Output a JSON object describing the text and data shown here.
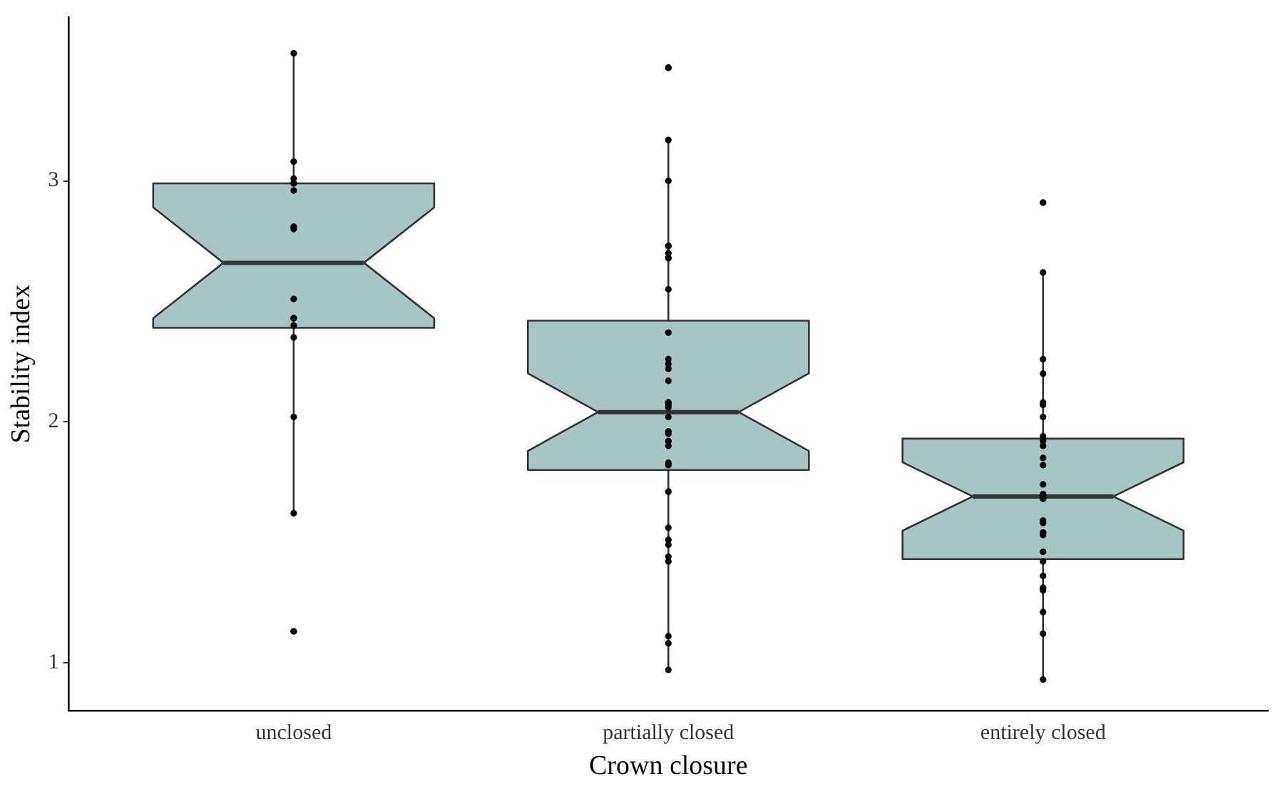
{
  "chart_data": {
    "type": "box",
    "xlabel": "Crown closure",
    "ylabel": "Stability index",
    "categories": [
      "unclosed",
      "partially closed",
      "entirely closed"
    ],
    "boxes": [
      {
        "low": 1.62,
        "q1": 2.39,
        "median": 2.66,
        "q3": 2.99,
        "high": 3.53
      },
      {
        "low": 0.97,
        "q1": 1.8,
        "median": 2.04,
        "q3": 2.42,
        "high": 3.17
      },
      {
        "low": 0.94,
        "q1": 1.43,
        "median": 1.69,
        "q3": 1.93,
        "high": 2.62
      }
    ],
    "color": "#a8c4c4",
    "series": [
      {
        "type": "scatter",
        "color": "#000000",
        "x": [
          "unclosed",
          "unclosed",
          "unclosed",
          "unclosed",
          "unclosed",
          "unclosed",
          "unclosed",
          "unclosed",
          "unclosed",
          "unclosed",
          "unclosed",
          "unclosed",
          "unclosed",
          "unclosed",
          "unclosed",
          "unclosed",
          "unclosed",
          "partially closed",
          "partially closed",
          "partially closed",
          "partially closed",
          "partially closed",
          "partially closed",
          "partially closed",
          "partially closed",
          "partially closed",
          "partially closed",
          "partially closed",
          "partially closed",
          "partially closed",
          "partially closed",
          "partially closed",
          "partially closed",
          "partially closed",
          "partially closed",
          "partially closed",
          "partially closed",
          "partially closed",
          "partially closed",
          "partially closed",
          "partially closed",
          "partially closed",
          "partially closed",
          "partially closed",
          "partially closed",
          "partially closed",
          "partially closed",
          "partially closed",
          "partially closed",
          "partially closed",
          "partially closed",
          "partially closed",
          "partially closed",
          "partially closed",
          "entirely closed",
          "entirely closed",
          "entirely closed",
          "entirely closed",
          "entirely closed",
          "entirely closed",
          "entirely closed",
          "entirely closed",
          "entirely closed",
          "entirely closed",
          "entirely closed",
          "entirely closed",
          "entirely closed",
          "entirely closed",
          "entirely closed",
          "entirely closed",
          "entirely closed",
          "entirely closed",
          "entirely closed",
          "entirely closed",
          "entirely closed",
          "entirely closed",
          "entirely closed",
          "entirely closed",
          "entirely closed",
          "entirely closed",
          "entirely closed",
          "entirely closed",
          "entirely closed",
          "entirely closed",
          "entirely closed"
        ],
        "values": [
          3.53,
          3.08,
          3.01,
          2.99,
          2.99,
          2.96,
          2.81,
          2.8,
          2.51,
          2.43,
          2.43,
          2.4,
          2.35,
          2.02,
          1.62,
          1.13,
          1.13,
          3.47,
          3.47,
          3.17,
          3.0,
          2.73,
          2.73,
          2.7,
          2.68,
          2.68,
          2.55,
          2.37,
          2.26,
          2.24,
          2.22,
          2.17,
          2.08,
          2.08,
          2.07,
          2.06,
          2.02,
          1.96,
          1.96,
          1.95,
          1.92,
          1.92,
          1.9,
          1.83,
          1.82,
          1.71,
          1.56,
          1.51,
          1.49,
          1.44,
          1.42,
          1.11,
          1.08,
          0.97,
          2.91,
          2.91,
          2.62,
          2.26,
          2.2,
          2.08,
          2.07,
          2.02,
          1.94,
          1.92,
          1.9,
          1.85,
          1.82,
          1.74,
          1.7,
          1.69,
          1.68,
          1.59,
          1.58,
          1.54,
          1.54,
          1.53,
          1.46,
          1.42,
          1.36,
          1.31,
          1.31,
          1.3,
          1.21,
          1.12,
          0.93
        ]
      }
    ],
    "ylim": [
      0.8,
      3.68
    ],
    "yticks": [
      1,
      2,
      3
    ],
    "grid": false,
    "legend": false,
    "marker": "circle"
  }
}
